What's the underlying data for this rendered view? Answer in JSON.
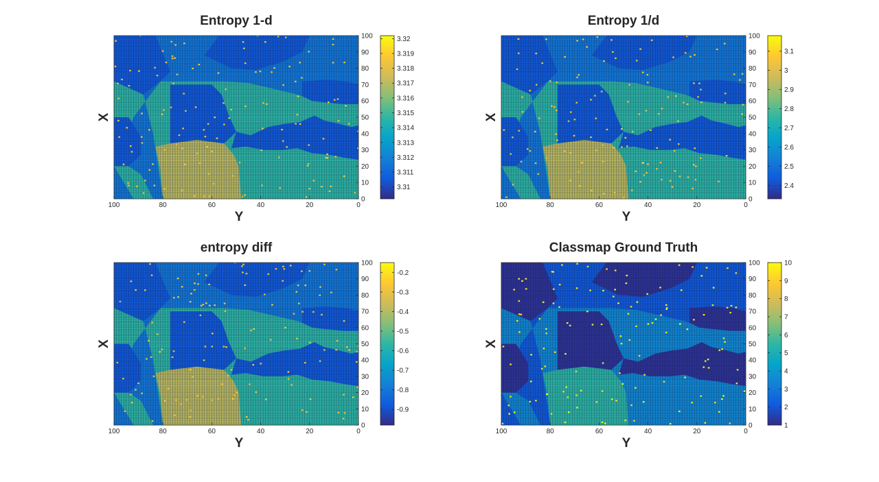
{
  "palette": [
    "#352a87",
    "#0f5cdd",
    "#1481d6",
    "#06a4ca",
    "#2eb7a4",
    "#87bf77",
    "#d1bb59",
    "#fec832",
    "#f9fb0e"
  ],
  "chart_data": [
    {
      "type": "heatmap",
      "title": "Entropy 1-d",
      "xlabel": "Y",
      "ylabel": "X",
      "xlim": [
        100,
        0
      ],
      "ylim": [
        0,
        100
      ],
      "xticks": [
        "100",
        "80",
        "60",
        "40",
        "20",
        "0"
      ],
      "yticks": [
        "0",
        "10",
        "20",
        "30",
        "40",
        "50",
        "60",
        "70",
        "80",
        "90",
        "100"
      ],
      "colorbar": {
        "limits": [
          3.3092,
          3.3202
        ],
        "ticks": [
          "3.31",
          "3.311",
          "3.312",
          "3.313",
          "3.314",
          "3.315",
          "3.316",
          "3.317",
          "3.318",
          "3.319",
          "3.32"
        ]
      },
      "region_colors": [
        0.12,
        0.5,
        0.72,
        0.22
      ]
    },
    {
      "type": "heatmap",
      "title": "Entropy 1/d",
      "xlabel": "Y",
      "ylabel": "X",
      "xlim": [
        100,
        0
      ],
      "ylim": [
        0,
        100
      ],
      "xticks": [
        "100",
        "80",
        "60",
        "40",
        "20",
        "0"
      ],
      "yticks": [
        "0",
        "10",
        "20",
        "30",
        "40",
        "50",
        "60",
        "70",
        "80",
        "90",
        "100"
      ],
      "colorbar": {
        "limits": [
          2.33,
          3.18
        ],
        "ticks": [
          "2.4",
          "2.5",
          "2.6",
          "2.7",
          "2.8",
          "2.9",
          "3",
          "3.1"
        ]
      },
      "region_colors": [
        0.12,
        0.5,
        0.72,
        0.22
      ]
    },
    {
      "type": "heatmap",
      "title": "entropy diff",
      "xlabel": "Y",
      "ylabel": "X",
      "xlim": [
        100,
        0
      ],
      "ylim": [
        0,
        100
      ],
      "xticks": [
        "100",
        "80",
        "60",
        "40",
        "20",
        "0"
      ],
      "yticks": [
        "0",
        "10",
        "20",
        "30",
        "40",
        "50",
        "60",
        "70",
        "80",
        "90",
        "100"
      ],
      "colorbar": {
        "limits": [
          -0.98,
          -0.15
        ],
        "ticks": [
          "-0.9",
          "-0.8",
          "-0.7",
          "-0.6",
          "-0.5",
          "-0.4",
          "-0.3",
          "-0.2"
        ]
      },
      "region_colors": [
        0.12,
        0.5,
        0.72,
        0.22
      ]
    },
    {
      "type": "heatmap",
      "title": "Classmap Ground Truth",
      "xlabel": "Y",
      "ylabel": "X",
      "xlim": [
        100,
        0
      ],
      "ylim": [
        0,
        100
      ],
      "xticks": [
        "100",
        "80",
        "60",
        "40",
        "20",
        "0"
      ],
      "yticks": [
        "0",
        "10",
        "20",
        "30",
        "40",
        "50",
        "60",
        "70",
        "80",
        "90",
        "100"
      ],
      "colorbar": {
        "limits": [
          1,
          10
        ],
        "ticks": [
          "1",
          "2",
          "3",
          "4",
          "5",
          "6",
          "7",
          "8",
          "9",
          "10"
        ]
      },
      "region_colors": [
        0.02,
        0.28,
        0.5,
        0.12
      ]
    }
  ]
}
